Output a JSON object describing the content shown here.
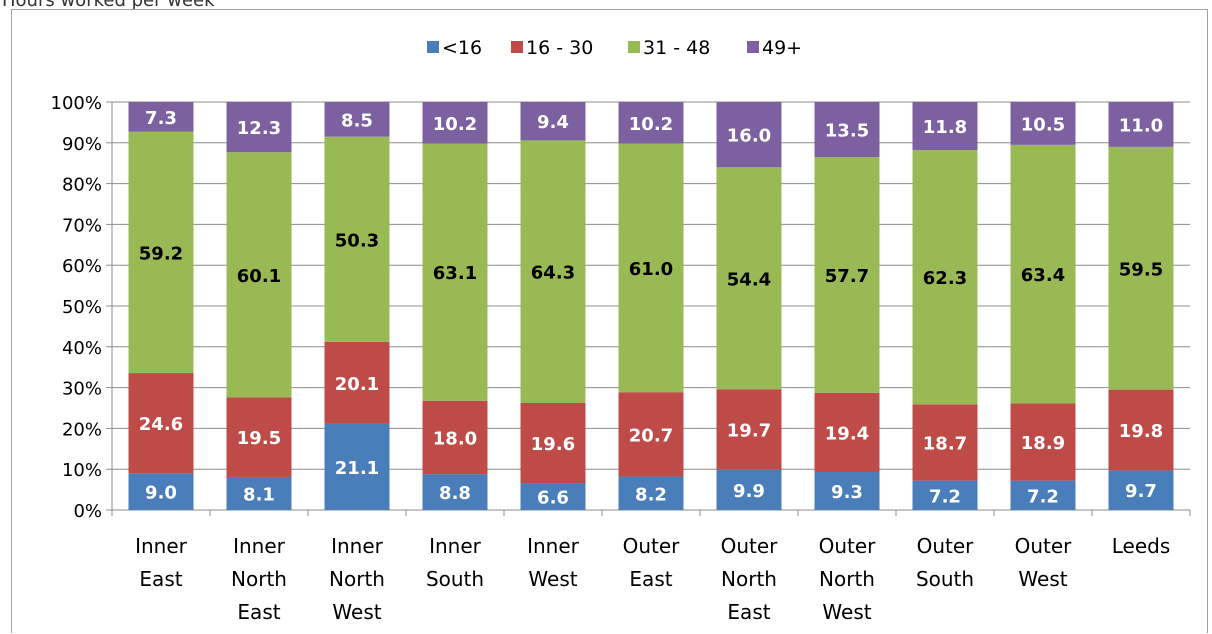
{
  "title": "Hours worked per week",
  "chart_data": {
    "type": "bar",
    "stacked": true,
    "percent_stacked": true,
    "title": "Hours worked per week",
    "categories": [
      [
        "Inner",
        "East"
      ],
      [
        "Inner",
        "North",
        "East"
      ],
      [
        "Inner",
        "North",
        "West"
      ],
      [
        "Inner",
        "South"
      ],
      [
        "Inner",
        "West"
      ],
      [
        "Outer",
        "East"
      ],
      [
        "Outer",
        "North",
        "East"
      ],
      [
        "Outer",
        "North",
        "West"
      ],
      [
        "Outer",
        "South"
      ],
      [
        "Outer",
        "West"
      ],
      [
        "Leeds"
      ]
    ],
    "series": [
      {
        "name": "<16",
        "color": "#4a7ebb",
        "label_color": "#ffffff",
        "values": [
          9.0,
          8.1,
          21.1,
          8.8,
          6.6,
          8.2,
          9.9,
          9.3,
          7.2,
          7.2,
          9.7
        ]
      },
      {
        "name": "16 - 30",
        "color": "#be4b48",
        "label_color": "#ffffff",
        "values": [
          24.6,
          19.5,
          20.1,
          18.0,
          19.6,
          20.7,
          19.7,
          19.4,
          18.7,
          18.9,
          19.8
        ]
      },
      {
        "name": "31 - 48",
        "color": "#98b954",
        "label_color": "#000000",
        "values": [
          59.2,
          60.1,
          50.3,
          63.1,
          64.3,
          61.0,
          54.4,
          57.7,
          62.3,
          63.4,
          59.5
        ]
      },
      {
        "name": "49+",
        "color": "#7d60a0",
        "label_color": "#ffffff",
        "values": [
          7.3,
          12.3,
          8.5,
          10.2,
          9.4,
          10.2,
          16.0,
          13.5,
          11.8,
          10.5,
          11.0
        ]
      }
    ],
    "label_format": "0.0",
    "y_ticks": [
      "0%",
      "10%",
      "20%",
      "30%",
      "40%",
      "50%",
      "60%",
      "70%",
      "80%",
      "90%",
      "100%"
    ],
    "ylim": [
      0,
      100
    ],
    "grid": true,
    "legend_position": "top"
  }
}
